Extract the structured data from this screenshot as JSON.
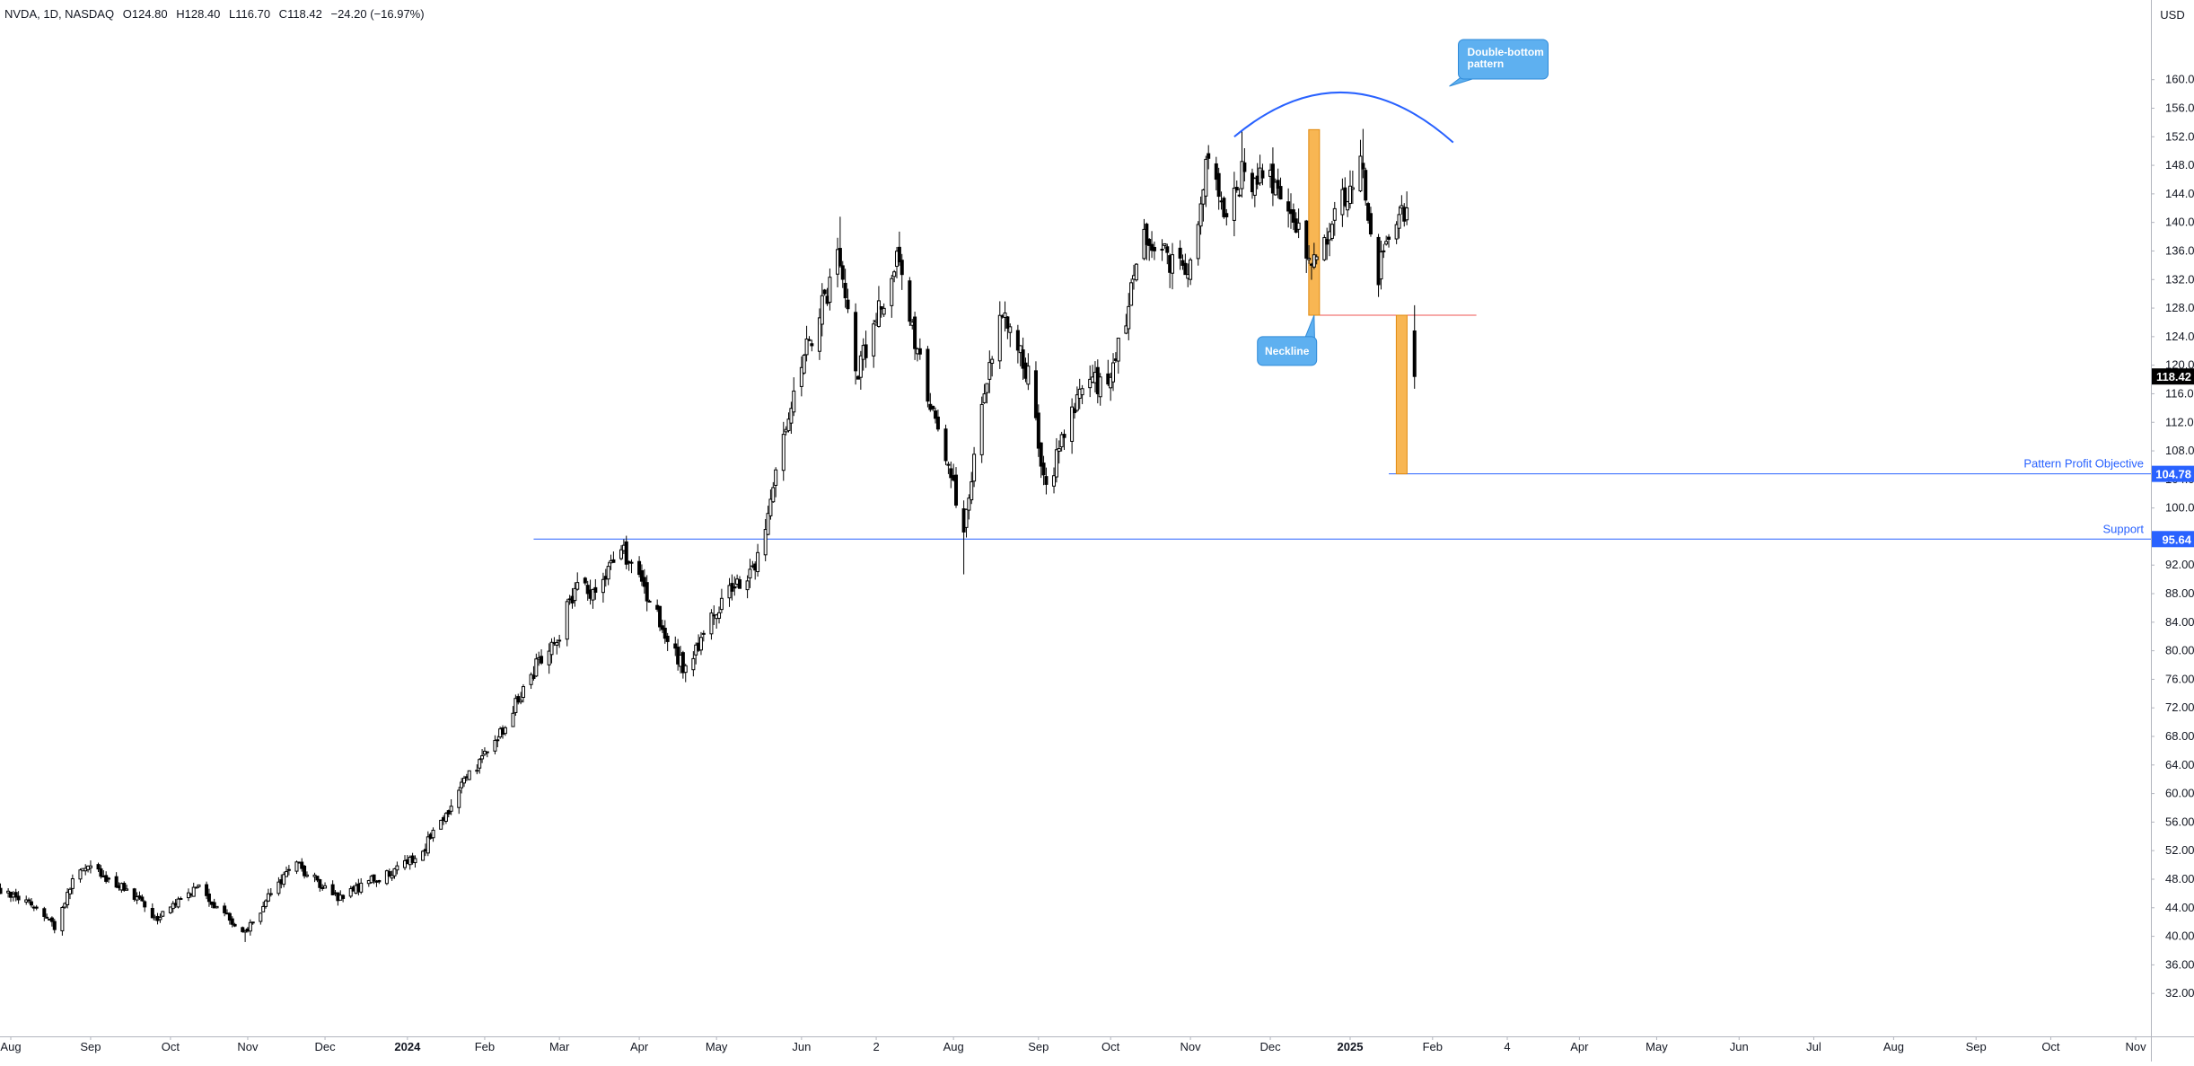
{
  "header": {
    "symbol_info": "NVDA, 1D, NASDAQ",
    "o_label": "O",
    "o_value": "124.80",
    "h_label": "H",
    "h_value": "128.40",
    "l_label": "L",
    "l_value": "116.70",
    "c_label": "C",
    "c_value": "118.42",
    "change": "−24.20 (−16.97%)",
    "currency": "USD"
  },
  "chart_data": {
    "type": "candlestick",
    "symbol": "NVDA",
    "interval": "1D",
    "exchange": "NASDAQ",
    "ylim": [
      28.5,
      166
    ],
    "y_ticks": [
      "32.00",
      "36.00",
      "40.00",
      "44.00",
      "48.00",
      "52.00",
      "56.00",
      "60.00",
      "64.00",
      "68.00",
      "72.00",
      "76.00",
      "80.00",
      "84.00",
      "88.00",
      "92.00",
      "96.00",
      "100.00",
      "104.00",
      "108.00",
      "112.00",
      "116.00",
      "120.00",
      "124.00",
      "128.00",
      "132.00",
      "136.00",
      "140.00",
      "144.00",
      "148.00",
      "152.00",
      "156.00",
      "160.00"
    ],
    "y_tick_values": [
      32,
      36,
      40,
      44,
      48,
      52,
      56,
      60,
      64,
      68,
      72,
      76,
      80,
      84,
      88,
      92,
      96,
      100,
      104,
      108,
      112,
      116,
      120,
      124,
      128,
      132,
      136,
      140,
      144,
      148,
      152,
      156,
      160
    ],
    "x_labels": [
      {
        "label": "Aug",
        "date": "2023-08-01",
        "bold": false
      },
      {
        "label": "Sep",
        "date": "2023-09-01",
        "bold": false
      },
      {
        "label": "Oct",
        "date": "2023-10-02",
        "bold": false
      },
      {
        "label": "Nov",
        "date": "2023-11-01",
        "bold": false
      },
      {
        "label": "Dec",
        "date": "2023-12-01",
        "bold": false
      },
      {
        "label": "2024",
        "date": "2024-01-02",
        "bold": true
      },
      {
        "label": "Feb",
        "date": "2024-02-01",
        "bold": false
      },
      {
        "label": "Mar",
        "date": "2024-03-01",
        "bold": false
      },
      {
        "label": "Apr",
        "date": "2024-04-01",
        "bold": false
      },
      {
        "label": "May",
        "date": "2024-05-01",
        "bold": false
      },
      {
        "label": "Jun",
        "date": "2024-06-03",
        "bold": false
      },
      {
        "label": "2",
        "date": "2024-07-02",
        "bold": false
      },
      {
        "label": "Aug",
        "date": "2024-08-01",
        "bold": false
      },
      {
        "label": "Sep",
        "date": "2024-09-03",
        "bold": false
      },
      {
        "label": "Oct",
        "date": "2024-10-01",
        "bold": false
      },
      {
        "label": "Nov",
        "date": "2024-11-01",
        "bold": false
      },
      {
        "label": "Dec",
        "date": "2024-12-02",
        "bold": false
      },
      {
        "label": "2025",
        "date": "2025-01-02",
        "bold": true
      },
      {
        "label": "Feb",
        "date": "2025-02-03",
        "bold": false
      },
      {
        "label": "4",
        "date": "2025-03-04",
        "bold": false
      },
      {
        "label": "Apr",
        "date": "2025-04-01",
        "bold": false
      },
      {
        "label": "May",
        "date": "2025-05-01",
        "bold": false
      },
      {
        "label": "Jun",
        "date": "2025-06-02",
        "bold": false
      },
      {
        "label": "Jul",
        "date": "2025-07-01",
        "bold": false
      },
      {
        "label": "Aug",
        "date": "2025-08-01",
        "bold": false
      },
      {
        "label": "Sep",
        "date": "2025-09-02",
        "bold": false
      },
      {
        "label": "Oct",
        "date": "2025-10-01",
        "bold": false
      },
      {
        "label": "Nov",
        "date": "2025-11-03",
        "bold": false
      }
    ],
    "anchors": [
      [
        "2023-07-24",
        46.5
      ],
      [
        "2023-08-08",
        45.0
      ],
      [
        "2023-08-18",
        41.5
      ],
      [
        "2023-08-25",
        48.0
      ],
      [
        "2023-09-01",
        49.5
      ],
      [
        "2023-09-15",
        46.5
      ],
      [
        "2023-09-27",
        42.5
      ],
      [
        "2023-10-12",
        47.0
      ],
      [
        "2023-10-31",
        40.5
      ],
      [
        "2023-11-10",
        46.0
      ],
      [
        "2023-11-20",
        50.0
      ],
      [
        "2023-12-06",
        45.5
      ],
      [
        "2023-12-29",
        49.5
      ],
      [
        "2024-01-08",
        52.0
      ],
      [
        "2024-01-24",
        61.5
      ],
      [
        "2024-02-08",
        69.0
      ],
      [
        "2024-02-22",
        78.5
      ],
      [
        "2024-03-01",
        82.5
      ],
      [
        "2024-03-08",
        90.0
      ],
      [
        "2024-03-15",
        87.0
      ],
      [
        "2024-03-25",
        94.5
      ],
      [
        "2024-04-04",
        88.0
      ],
      [
        "2024-04-19",
        77.0
      ],
      [
        "2024-05-01",
        86.0
      ],
      [
        "2024-05-17",
        92.5
      ],
      [
        "2024-05-23",
        103.8
      ],
      [
        "2024-06-05",
        122.0
      ],
      [
        "2024-06-18",
        135.5
      ],
      [
        "2024-06-24",
        118.0
      ],
      [
        "2024-07-10",
        134.5
      ],
      [
        "2024-07-25",
        112.0
      ],
      [
        "2024-08-05",
        98.0
      ],
      [
        "2024-08-19",
        128.0
      ],
      [
        "2024-08-30",
        119.0
      ],
      [
        "2024-09-06",
        102.5
      ],
      [
        "2024-09-19",
        117.0
      ],
      [
        "2024-10-01",
        118.0
      ],
      [
        "2024-10-14",
        138.0
      ],
      [
        "2024-10-31",
        132.5
      ],
      [
        "2024-11-07",
        148.5
      ],
      [
        "2024-11-15",
        141.0
      ],
      [
        "2024-11-21",
        146.5
      ],
      [
        "2024-12-05",
        145.0
      ],
      [
        "2024-12-11",
        139.0
      ],
      [
        "2024-12-20",
        134.5
      ],
      [
        "2025-01-06",
        149.0
      ],
      [
        "2025-01-13",
        133.0
      ],
      [
        "2025-01-17",
        137.5
      ],
      [
        "2025-01-24",
        142.6
      ]
    ],
    "last_bar": {
      "date": "2025-01-27",
      "open": 124.8,
      "high": 128.4,
      "low": 116.7,
      "close": 118.42
    },
    "price_tag": "118.42",
    "neckline": {
      "price": 127.0,
      "from": "2024-12-18",
      "to": "2025-02-20"
    },
    "support": {
      "label": "Support",
      "price": 95.64,
      "tag": "95.64",
      "from": "2024-02-20"
    },
    "objective": {
      "label": "Pattern Profit Objective",
      "price": 104.78,
      "tag": "104.78",
      "from": "2025-01-17"
    },
    "pattern_bars": [
      {
        "date": "2024-12-19",
        "low": 127.0,
        "high": 153.0
      },
      {
        "date": "2025-01-22",
        "low": 104.78,
        "high": 127.0
      }
    ],
    "arc": {
      "from": "2024-11-18",
      "to": "2025-02-11",
      "peak_price": 158.2
    },
    "callouts": [
      {
        "lines": [
          "Double-bottom",
          "pattern"
        ]
      },
      {
        "lines": [
          "Neckline"
        ]
      }
    ],
    "colors": {
      "candle": "#000000",
      "neckline": "#ef5350",
      "support": "#2962ff",
      "objective": "#2962ff",
      "pattern_bar": "#f7a935",
      "arc": "#2962ff",
      "callout": "#5eb0f0",
      "price_tag_bg": "#000000",
      "level_tag_bg": "#2962ff"
    }
  }
}
